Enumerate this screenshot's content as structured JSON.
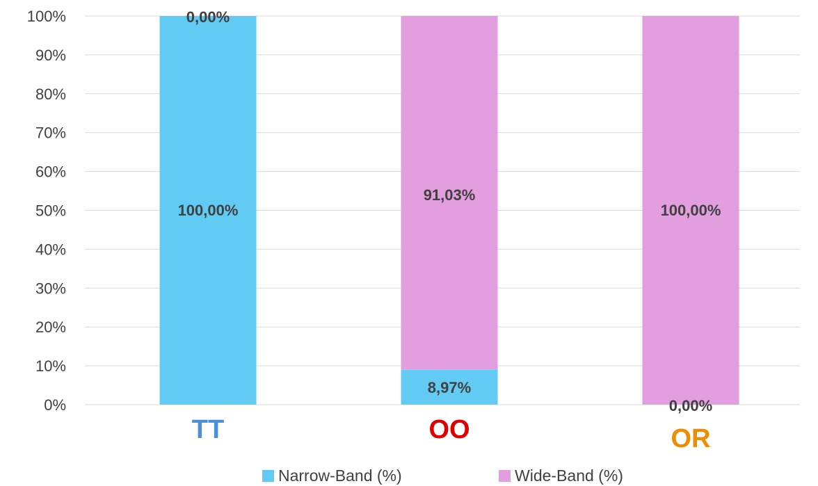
{
  "chart_data": {
    "type": "bar",
    "stacked": true,
    "percent_stacked": true,
    "categories": [
      "TT",
      "OO",
      "OR"
    ],
    "category_label_colors": [
      "#4a90d9",
      "#e00000",
      "#f08c00"
    ],
    "series": [
      {
        "name": "Narrow-Band (%)",
        "color": "#61cbf4",
        "values": [
          100.0,
          8.97,
          0.0
        ],
        "labels": [
          "100,00%",
          "8,97%",
          "0,00%"
        ]
      },
      {
        "name": "Wide-Band (%)",
        "color": "#e39edf",
        "values": [
          0.0,
          91.03,
          100.0
        ],
        "labels": [
          "0,00%",
          "91,03%",
          "100,00%"
        ]
      }
    ],
    "ylim": [
      0,
      100
    ],
    "yticks": [
      "0%",
      "10%",
      "20%",
      "30%",
      "40%",
      "50%",
      "60%",
      "70%",
      "80%",
      "90%",
      "100%"
    ],
    "grid": true,
    "legend_position": "bottom",
    "title": "",
    "xlabel": "",
    "ylabel": ""
  }
}
